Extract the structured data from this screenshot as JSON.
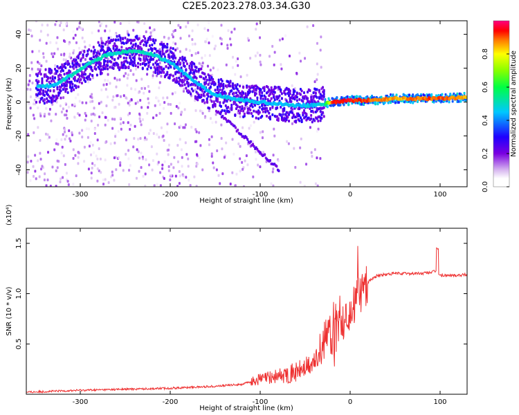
{
  "title": "C2E5.2023.278.03.34.G30",
  "chart_data": [
    {
      "type": "heatmap",
      "xlabel": "Height of straight line (km)",
      "ylabel": "Frequency (Hz)",
      "xlim": [
        -360,
        130
      ],
      "ylim": [
        -50,
        48
      ],
      "x_ticks": [
        -300,
        -200,
        -100,
        0,
        100
      ],
      "x_tick_labels": [
        "-300",
        "-200",
        "-100",
        "0",
        "100"
      ],
      "y_ticks": [
        40,
        20,
        0,
        -20,
        -40
      ],
      "y_tick_labels": [
        "40",
        "20",
        "0",
        "-20",
        "-40"
      ],
      "colorbar": {
        "label": "Normalized spectral amplitude",
        "range": [
          0,
          1
        ],
        "ticks": [
          0.0,
          0.2,
          0.4,
          0.6,
          0.8
        ],
        "tick_labels": [
          "0.0",
          "0.2",
          "0.4",
          "0.6",
          "0.8"
        ],
        "colormap": "rainbow (white-violet-blue-cyan-green-yellow-red-magenta)"
      },
      "ridge": {
        "x": [
          -345,
          -330,
          -310,
          -290,
          -270,
          -250,
          -235,
          -220,
          -200,
          -185,
          -170,
          -155,
          -140,
          -120,
          -100,
          -80,
          -60,
          -40,
          -30,
          -20,
          0,
          20,
          50,
          80,
          100,
          128
        ],
        "y": [
          9,
          10,
          16,
          23,
          28,
          30,
          30,
          28,
          23,
          17,
          11,
          5,
          3,
          1,
          0,
          -1,
          -2,
          -2,
          -1,
          0,
          1,
          1,
          2,
          2,
          2,
          3
        ],
        "amplitude": [
          0.45,
          0.45,
          0.5,
          0.5,
          0.5,
          0.5,
          0.5,
          0.5,
          0.45,
          0.45,
          0.45,
          0.45,
          0.45,
          0.45,
          0.45,
          0.45,
          0.45,
          0.45,
          0.5,
          0.95,
          0.95,
          0.9,
          0.85,
          0.9,
          0.9,
          0.85
        ]
      }
    },
    {
      "type": "line",
      "xlabel": "Height of straight line (km)",
      "ylabel": "SNR (10 * v/v)",
      "y_multiplier_label": "(x10⁴)",
      "xlim": [
        -360,
        130
      ],
      "ylim": [
        0,
        1.65
      ],
      "x_ticks": [
        -300,
        -200,
        -100,
        0,
        100
      ],
      "x_tick_labels": [
        "-300",
        "-200",
        "-100",
        "0",
        "100"
      ],
      "y_ticks": [
        0.5,
        1.0,
        1.5
      ],
      "y_tick_labels": [
        "0.5",
        "1.0",
        "1.5"
      ],
      "series": [
        {
          "color": "#ee3030",
          "x": [
            -360,
            -300,
            -250,
            -200,
            -150,
            -120,
            -100,
            -80,
            -60,
            -40,
            -30,
            -20,
            -10,
            0,
            10,
            20,
            30,
            50,
            80,
            95,
            100,
            110,
            130
          ],
          "y": [
            0.02,
            0.04,
            0.05,
            0.06,
            0.08,
            0.1,
            0.15,
            0.18,
            0.22,
            0.3,
            0.45,
            0.6,
            0.7,
            0.85,
            1.0,
            1.12,
            1.18,
            1.2,
            1.2,
            1.22,
            1.18,
            1.18,
            1.19
          ]
        }
      ]
    }
  ]
}
